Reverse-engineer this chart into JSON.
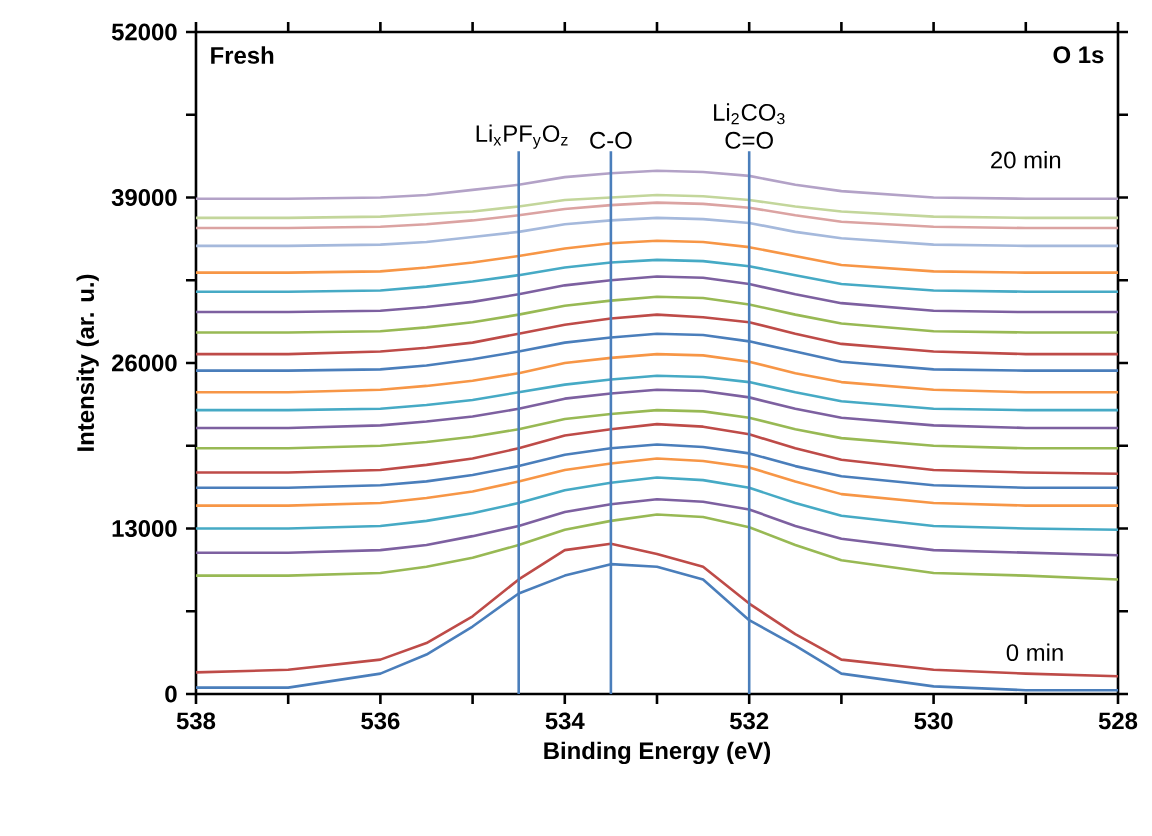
{
  "chart_data": {
    "type": "line",
    "xlabel": "Binding Energy (eV)",
    "ylabel": "Intensity (ar. u.)",
    "x": [
      538,
      537,
      536,
      535.5,
      535,
      534.5,
      534,
      533.5,
      533,
      532.5,
      532,
      531.5,
      531,
      530,
      529,
      528
    ],
    "xlim": [
      538,
      528
    ],
    "ylim": [
      0,
      52000
    ],
    "xticks": [
      538,
      {
        "value": 537,
        "label": null
      },
      536,
      {
        "value": 535,
        "label": null
      },
      534,
      {
        "value": 533,
        "label": null
      },
      532,
      {
        "value": 531,
        "label": null
      },
      530,
      {
        "value": 529,
        "label": null
      },
      528
    ],
    "yticks": [
      0,
      {
        "value": 6500,
        "label": null
      },
      13000,
      {
        "value": 19500,
        "label": null
      },
      26000,
      {
        "value": 32500,
        "label": null
      },
      39000,
      {
        "value": 45500,
        "label": null
      },
      52000
    ],
    "grid": false,
    "series": [
      {
        "color": "#4a7ebb",
        "values": [
          500,
          500,
          1600,
          3100,
          5300,
          7900,
          9300,
          10200,
          10000,
          9000,
          5800,
          3800,
          1600,
          600,
          300,
          300
        ]
      },
      {
        "color": "#be4b48",
        "values": [
          1700,
          1900,
          2700,
          4000,
          6100,
          9000,
          11300,
          11800,
          11000,
          10000,
          7100,
          4700,
          2700,
          1900,
          1600,
          1400
        ]
      },
      {
        "color": "#98b954",
        "values": [
          9300,
          9300,
          9500,
          10000,
          10700,
          11700,
          12900,
          13600,
          14100,
          13900,
          13100,
          11700,
          10500,
          9500,
          9300,
          9000
        ]
      },
      {
        "color": "#7d60a0",
        "values": [
          11100,
          11100,
          11300,
          11700,
          12400,
          13200,
          14300,
          14900,
          15300,
          15100,
          14500,
          13200,
          12200,
          11300,
          11100,
          10900
        ]
      },
      {
        "color": "#46aac5",
        "values": [
          13000,
          13000,
          13200,
          13600,
          14200,
          15000,
          16000,
          16600,
          17000,
          16800,
          16200,
          15000,
          14000,
          13200,
          13000,
          12900
        ]
      },
      {
        "color": "#f79646",
        "values": [
          14800,
          14800,
          15000,
          15400,
          15900,
          16700,
          17600,
          18100,
          18500,
          18300,
          17800,
          16700,
          15700,
          15000,
          14800,
          14800
        ]
      },
      {
        "color": "#4a7ebb",
        "values": [
          16200,
          16200,
          16400,
          16700,
          17200,
          17900,
          18800,
          19300,
          19600,
          19400,
          18900,
          17900,
          17100,
          16400,
          16200,
          16200
        ]
      },
      {
        "color": "#be4b48",
        "values": [
          17400,
          17400,
          17600,
          18000,
          18500,
          19300,
          20300,
          20800,
          21200,
          21000,
          20400,
          19300,
          18400,
          17600,
          17400,
          17300
        ]
      },
      {
        "color": "#98b954",
        "values": [
          19300,
          19300,
          19500,
          19800,
          20200,
          20800,
          21600,
          22000,
          22300,
          22200,
          21700,
          20800,
          20100,
          19500,
          19300,
          19300
        ]
      },
      {
        "color": "#7d60a0",
        "values": [
          20900,
          20900,
          21100,
          21400,
          21800,
          22400,
          23200,
          23600,
          23900,
          23800,
          23300,
          22400,
          21700,
          21100,
          20900,
          20900
        ]
      },
      {
        "color": "#46aac5",
        "values": [
          22300,
          22300,
          22400,
          22700,
          23100,
          23700,
          24300,
          24700,
          25000,
          24900,
          24500,
          23700,
          23000,
          22400,
          22300,
          22300
        ]
      },
      {
        "color": "#f79646",
        "values": [
          23700,
          23700,
          23900,
          24200,
          24600,
          25200,
          26000,
          26400,
          26700,
          26600,
          26100,
          25200,
          24500,
          23900,
          23700,
          23700
        ]
      },
      {
        "color": "#4a7ebb",
        "values": [
          25400,
          25400,
          25500,
          25800,
          26300,
          26900,
          27600,
          28000,
          28300,
          28200,
          27700,
          26900,
          26100,
          25500,
          25400,
          25400
        ]
      },
      {
        "color": "#be4b48",
        "values": [
          26700,
          26700,
          26900,
          27200,
          27600,
          28300,
          29000,
          29500,
          29800,
          29600,
          29200,
          28300,
          27500,
          26900,
          26700,
          26700
        ]
      },
      {
        "color": "#98b954",
        "values": [
          28400,
          28400,
          28500,
          28800,
          29200,
          29800,
          30500,
          30900,
          31200,
          31100,
          30600,
          29800,
          29100,
          28500,
          28400,
          28400
        ]
      },
      {
        "color": "#7d60a0",
        "values": [
          30000,
          30000,
          30100,
          30400,
          30800,
          31400,
          32100,
          32500,
          32800,
          32700,
          32200,
          31400,
          30700,
          30100,
          30000,
          30000
        ]
      },
      {
        "color": "#46aac5",
        "values": [
          31600,
          31600,
          31700,
          32000,
          32400,
          32900,
          33500,
          33900,
          34100,
          34000,
          33600,
          32900,
          32200,
          31700,
          31600,
          31600
        ]
      },
      {
        "color": "#f79646",
        "values": [
          33100,
          33100,
          33200,
          33500,
          33900,
          34400,
          35000,
          35400,
          35600,
          35500,
          35100,
          34400,
          33700,
          33200,
          33100,
          33100
        ]
      },
      {
        "color": "#a5b9dc",
        "values": [
          35200,
          35200,
          35300,
          35500,
          35900,
          36300,
          36900,
          37200,
          37400,
          37300,
          37000,
          36300,
          35800,
          35300,
          35200,
          35200
        ]
      },
      {
        "color": "#dba3a2",
        "values": [
          36600,
          36600,
          36700,
          36900,
          37200,
          37600,
          38100,
          38400,
          38600,
          38500,
          38200,
          37600,
          37100,
          36700,
          36600,
          36600
        ]
      },
      {
        "color": "#c3d69b",
        "values": [
          37400,
          37400,
          37500,
          37700,
          37900,
          38300,
          38800,
          39000,
          39200,
          39100,
          38800,
          38300,
          37900,
          37500,
          37400,
          37400
        ]
      },
      {
        "color": "#b3a2c7",
        "values": [
          38900,
          38900,
          39000,
          39200,
          39600,
          40000,
          40600,
          40900,
          41100,
          41000,
          40700,
          40000,
          39500,
          39000,
          38900,
          38900
        ]
      }
    ],
    "ref_lines": [
      {
        "axis": "x",
        "value": 534.5,
        "label": "Li$_{x}$PF$_{y}$O$_{z}$",
        "color": "#4a7ebb"
      },
      {
        "axis": "x",
        "value": 533.5,
        "label": "C-O",
        "color": "#4a7ebb"
      },
      {
        "axis": "x",
        "value": 532,
        "label": "Li$_{2}$CO$_{3}$ C=O",
        "color": "#4a7ebb"
      }
    ],
    "annotations": [
      "Fresh",
      "O 1s",
      "20 min",
      "0 min"
    ]
  }
}
